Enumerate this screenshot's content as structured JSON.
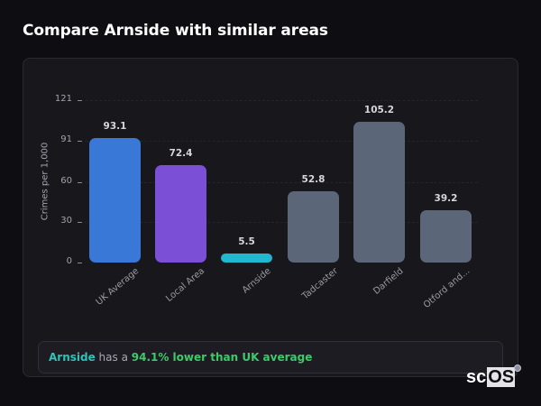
{
  "header": {
    "title": "Compare Arnside with similar areas"
  },
  "chart_data": {
    "type": "bar",
    "title": "",
    "xlabel": "",
    "ylabel": "Crimes per 1,000",
    "ylim": [
      0,
      121
    ],
    "yticks": [
      0,
      30,
      60,
      91,
      121
    ],
    "ytick_labels": [
      "0",
      "30",
      "60",
      "91",
      "121"
    ],
    "grid": true,
    "legend": null,
    "categories": [
      "UK Average",
      "Local Area",
      "Arnside",
      "Tadcaster",
      "Darfield",
      "Otford and..."
    ],
    "values": [
      93.1,
      72.4,
      5.5,
      52.8,
      105.2,
      39.2
    ],
    "value_labels": [
      "93.1",
      "72.4",
      "5.5",
      "52.8",
      "105.2",
      "39.2"
    ],
    "colors": [
      "#3a78d8",
      "#7b4fd6",
      "#1fb8cf",
      "#5b6678",
      "#5b6678",
      "#5b6678"
    ]
  },
  "summary": {
    "place": "Arnside",
    "middle": " has a ",
    "stat": "94.1% lower than UK average"
  },
  "branding": {
    "logo_sc": "sc",
    "logo_os": "OS",
    "registered": "®"
  }
}
